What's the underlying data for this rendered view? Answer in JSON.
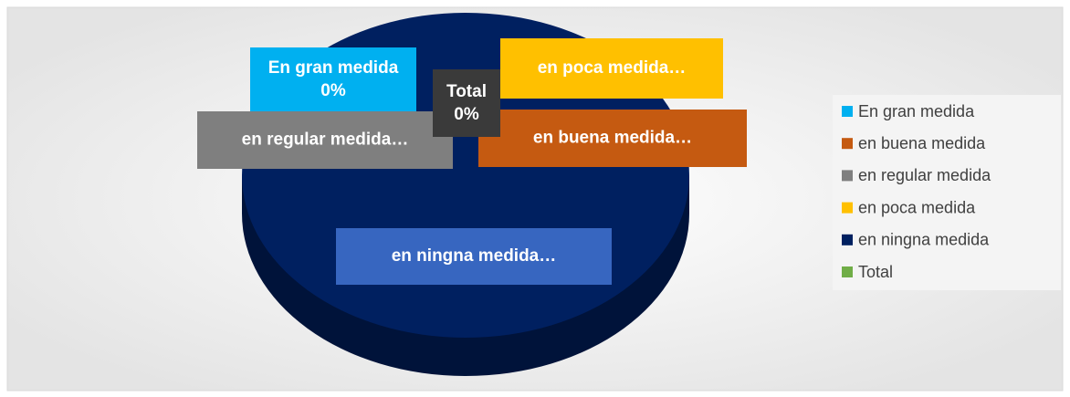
{
  "chart_data": {
    "type": "pie",
    "categories": [
      "En gran medida",
      "en buena medida",
      "en regular medida",
      "en poca medida",
      "en ningna medida",
      "Total"
    ],
    "values": [
      0,
      0,
      0,
      0,
      100,
      0
    ],
    "value_labels": [
      "0%",
      null,
      null,
      null,
      null,
      "0%"
    ],
    "label_texts": [
      "En gran medida",
      "en buena medida…",
      "en regular medida…",
      "en poca medida…",
      "en ningna medida…",
      "Total"
    ],
    "colors": [
      "#00b0f0",
      "#c55a11",
      "#7f7f7f",
      "#ffc000",
      "#002060",
      "#70ad47"
    ],
    "legend": "right"
  }
}
